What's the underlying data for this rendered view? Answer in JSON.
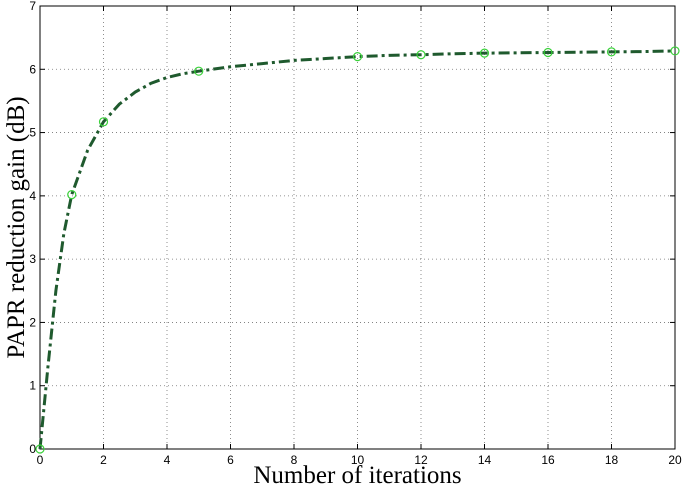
{
  "chart_data": {
    "type": "line",
    "title": "",
    "xlabel": "Number of iterations",
    "ylabel": "PAPR reduction gain (dB)",
    "xlim": [
      0,
      20
    ],
    "ylim": [
      0,
      7
    ],
    "xticks": [
      0,
      2,
      4,
      6,
      8,
      10,
      12,
      14,
      16,
      18,
      20
    ],
    "yticks": [
      0,
      1,
      2,
      3,
      4,
      5,
      6,
      7
    ],
    "grid": true,
    "curve": {
      "x": [
        0,
        0.25,
        0.5,
        0.75,
        1,
        1.5,
        2,
        2.5,
        3,
        3.5,
        4,
        4.5,
        5,
        6,
        7,
        8,
        9,
        10,
        11,
        12,
        13,
        14,
        15,
        16,
        17,
        18,
        19,
        20
      ],
      "y": [
        0,
        1.3,
        2.5,
        3.4,
        4.02,
        4.72,
        5.17,
        5.45,
        5.64,
        5.78,
        5.87,
        5.93,
        5.97,
        6.04,
        6.09,
        6.14,
        6.17,
        6.2,
        6.22,
        6.23,
        6.245,
        6.255,
        6.26,
        6.265,
        6.27,
        6.275,
        6.28,
        6.29
      ]
    },
    "markers": {
      "x": [
        0,
        1,
        2,
        5,
        10,
        12,
        14,
        16,
        18,
        20
      ],
      "y": [
        0,
        4.02,
        5.17,
        5.97,
        6.2,
        6.23,
        6.255,
        6.265,
        6.275,
        6.29
      ]
    },
    "colors": {
      "line": "#1f5a2e",
      "marker": "#3ad13a"
    }
  }
}
